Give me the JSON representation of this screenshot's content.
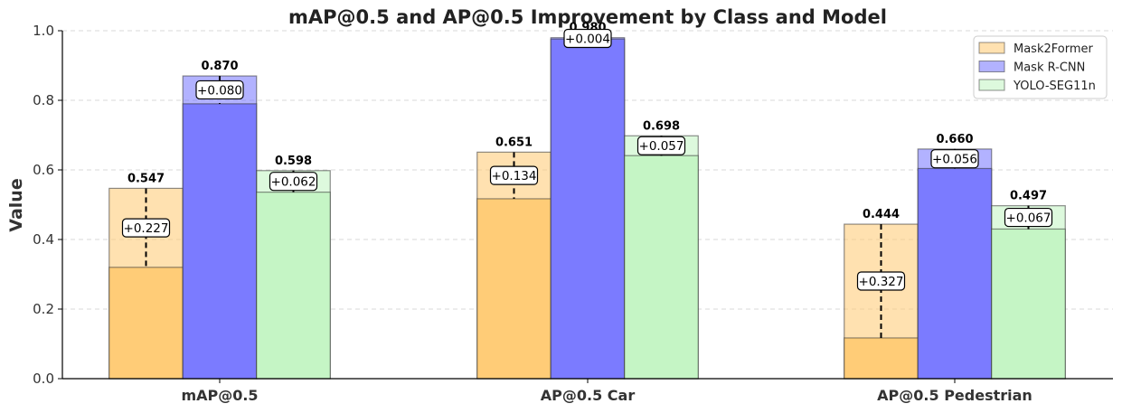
{
  "chart_data": {
    "type": "bar",
    "title": "mAP@0.5 and AP@0.5 Improvement by Class and Model",
    "xlabel": "",
    "ylabel": "Value",
    "ylim": [
      0,
      1.0
    ],
    "yticks": [
      "0.0",
      "0.2",
      "0.4",
      "0.6",
      "0.8",
      "1.0"
    ],
    "grid": true,
    "legend_position": "top-right",
    "categories": [
      "mAP@0.5",
      "AP@0.5 Car",
      "AP@0.5 Pedestrian"
    ],
    "series": [
      {
        "name": "Mask2Former",
        "color": "#ffcc77",
        "final": [
          0.547,
          0.651,
          0.444
        ],
        "final_labels": [
          "0.547",
          "0.651",
          "0.444"
        ],
        "baseline": [
          0.32,
          0.517,
          0.117
        ],
        "improvement_labels": [
          "+0.227",
          "+0.134",
          "+0.327"
        ]
      },
      {
        "name": "Mask R-CNN",
        "color": "#7b7bff",
        "final": [
          0.87,
          0.98,
          0.66
        ],
        "final_labels": [
          "0.870",
          "0.980",
          "0.660"
        ],
        "baseline": [
          0.79,
          0.976,
          0.604
        ],
        "improvement_labels": [
          "+0.080",
          "+0.004",
          "+0.056"
        ]
      },
      {
        "name": "YOLO-SEG11n",
        "color": "#c5f5c5",
        "final": [
          0.598,
          0.698,
          0.497
        ],
        "final_labels": [
          "0.598",
          "0.698",
          "0.497"
        ],
        "baseline": [
          0.536,
          0.641,
          0.43
        ],
        "improvement_labels": [
          "+0.062",
          "+0.057",
          "+0.067"
        ]
      }
    ]
  }
}
